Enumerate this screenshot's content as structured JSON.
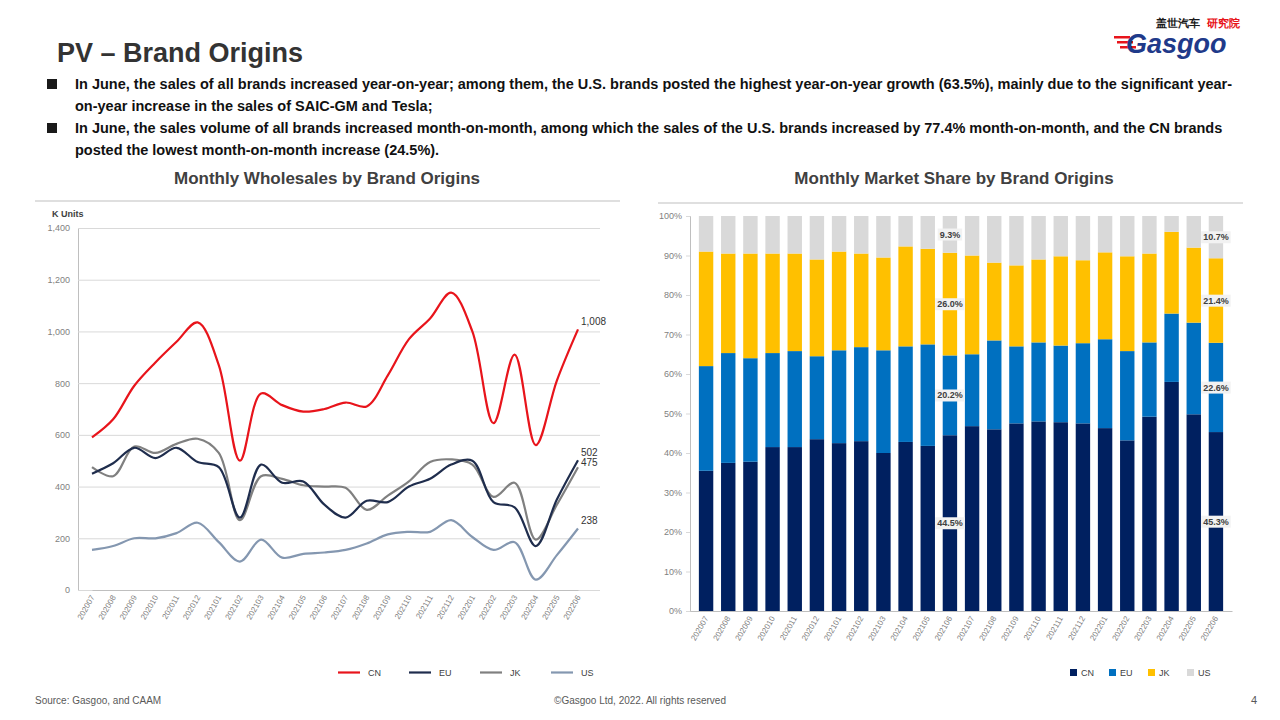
{
  "page": {
    "title": "PV – Brand Origins",
    "logo_cn": "盖世汽车",
    "logo_sub": "研究院",
    "logo_en": "Gasgoo",
    "bullets": [
      "In June, the sales of all brands increased year-on-year; among them, the U.S. brands posted the highest year-on-year growth (63.5%), mainly due to the significant year-on-year increase in the sales of SAIC-GM and Tesla;",
      "In June, the sales volume of all brands increased month-on-month, among which the sales of the U.S. brands increased by 77.4% month-on-month, and the CN brands posted the lowest month-on-month increase (24.5%)."
    ],
    "source": "Source: Gasgoo, and CAAM",
    "copyright": "©Gasgoo Ltd, 2022. All rights reserved",
    "page_number": "4"
  },
  "chart_data": [
    {
      "type": "line",
      "title": "Monthly Wholesales by Brand Origins",
      "ylabel": "K Units",
      "categories": [
        "202007",
        "202008",
        "202009",
        "202010",
        "202011",
        "202012",
        "202101",
        "202102",
        "202103",
        "202104",
        "202105",
        "202106",
        "202107",
        "202108",
        "202109",
        "202110",
        "202111",
        "202112",
        "202201",
        "202202",
        "202203",
        "202204",
        "202205",
        "202206"
      ],
      "ylim": [
        0,
        1400
      ],
      "yticks": [
        0,
        200,
        400,
        600,
        800,
        {
          "value": 1000,
          "label": "1,000"
        },
        {
          "value": 1200,
          "label": "1,200"
        },
        {
          "value": 1400,
          "label": "1,400"
        }
      ],
      "grid": true,
      "legend": "bottom",
      "data_labels": true,
      "series": [
        {
          "name": "CN",
          "color": "#e8141b",
          "values": [
            590,
            660,
            790,
            880,
            960,
            1035,
            870,
            500,
            760,
            715,
            690,
            700,
            725,
            710,
            830,
            970,
            1050,
            1150,
            1000,
            645,
            910,
            560,
            810,
            1008
          ],
          "value_labels": [
            null,
            null,
            null,
            null,
            null,
            null,
            null,
            null,
            null,
            null,
            null,
            null,
            null,
            null,
            null,
            null,
            null,
            null,
            null,
            null,
            null,
            null,
            null,
            "1,008"
          ]
        },
        {
          "name": "EU",
          "color": "#1f2d4d",
          "values": [
            450,
            490,
            550,
            510,
            550,
            495,
            475,
            280,
            485,
            415,
            420,
            330,
            280,
            345,
            340,
            400,
            430,
            485,
            500,
            340,
            320,
            170,
            350,
            502
          ],
          "value_labels": [
            null,
            null,
            null,
            null,
            null,
            null,
            null,
            null,
            null,
            null,
            null,
            null,
            null,
            null,
            null,
            null,
            null,
            null,
            null,
            null,
            null,
            null,
            null,
            "502"
          ]
        },
        {
          "name": "JK",
          "color": "#808080",
          "values": [
            475,
            440,
            555,
            530,
            565,
            585,
            530,
            270,
            440,
            430,
            405,
            400,
            395,
            310,
            365,
            420,
            495,
            505,
            485,
            360,
            415,
            195,
            330,
            475
          ],
          "value_labels": [
            null,
            null,
            null,
            null,
            null,
            null,
            null,
            null,
            null,
            null,
            null,
            null,
            null,
            null,
            null,
            null,
            null,
            null,
            null,
            null,
            null,
            null,
            null,
            "475"
          ]
        },
        {
          "name": "US",
          "color": "#8497b0",
          "values": [
            155,
            170,
            200,
            200,
            220,
            260,
            185,
            110,
            195,
            125,
            140,
            145,
            155,
            180,
            215,
            225,
            225,
            270,
            205,
            155,
            185,
            40,
            135,
            238
          ],
          "value_labels": [
            null,
            null,
            null,
            null,
            null,
            null,
            null,
            null,
            null,
            null,
            null,
            null,
            null,
            null,
            null,
            null,
            null,
            null,
            null,
            null,
            null,
            null,
            null,
            "238"
          ]
        }
      ]
    },
    {
      "type": "bar",
      "stacked": true,
      "title": "Monthly Market Share by Brand Origins",
      "categories": [
        "202007",
        "202008",
        "202009",
        "202010",
        "202011",
        "202012",
        "202101",
        "202102",
        "202103",
        "202104",
        "202105",
        "202106",
        "202107",
        "202108",
        "202109",
        "202110",
        "202111",
        "202112",
        "202201",
        "202202",
        "202203",
        "202204",
        "202205",
        "202206"
      ],
      "ylim": [
        0,
        100
      ],
      "yticks": [
        {
          "value": 0,
          "label": "0%"
        },
        {
          "value": 10,
          "label": "10%"
        },
        {
          "value": 20,
          "label": "20%"
        },
        {
          "value": 30,
          "label": "30%"
        },
        {
          "value": 40,
          "label": "40%"
        },
        {
          "value": 50,
          "label": "50%"
        },
        {
          "value": 60,
          "label": "60%"
        },
        {
          "value": 70,
          "label": "70%"
        },
        {
          "value": 80,
          "label": "80%"
        },
        {
          "value": 90,
          "label": "90%"
        },
        {
          "value": 100,
          "label": "100%"
        }
      ],
      "grid": false,
      "legend": "bottom",
      "data_labels": true,
      "series": [
        {
          "name": "CN",
          "color": "#002060",
          "values": [
            35.5,
            37.5,
            37.8,
            41.5,
            41.5,
            43.5,
            42.5,
            43,
            40,
            42.8,
            41.8,
            44.5,
            46.8,
            46,
            47.5,
            48,
            47.8,
            47.5,
            46.3,
            43.2,
            49.2,
            58,
            49.8,
            45.3
          ],
          "value_labels": [
            null,
            null,
            null,
            null,
            null,
            null,
            null,
            null,
            null,
            null,
            null,
            "44.5%",
            null,
            null,
            null,
            null,
            null,
            null,
            null,
            null,
            null,
            null,
            null,
            "45.3%"
          ]
        },
        {
          "name": "EU",
          "color": "#0070c0",
          "values": [
            26.5,
            27.8,
            26.2,
            23.8,
            24.3,
            21,
            23.5,
            23.8,
            26,
            24.2,
            25.7,
            20.2,
            18.2,
            22.5,
            19.5,
            20,
            19.4,
            20.3,
            22.5,
            22.6,
            18.8,
            17.3,
            23.2,
            22.6
          ],
          "value_labels": [
            null,
            null,
            null,
            null,
            null,
            null,
            null,
            null,
            null,
            null,
            null,
            "20.2%",
            null,
            null,
            null,
            null,
            null,
            null,
            null,
            null,
            null,
            null,
            null,
            "22.6%"
          ]
        },
        {
          "name": "JK",
          "color": "#ffc000",
          "values": [
            29,
            25.2,
            26.5,
            25.2,
            24.7,
            24.5,
            25,
            23.7,
            23.5,
            25.3,
            24.2,
            26,
            25,
            19.7,
            20.5,
            21,
            22.6,
            21,
            22,
            24,
            22.5,
            20.7,
            19,
            21.4
          ],
          "value_labels": [
            null,
            null,
            null,
            null,
            null,
            null,
            null,
            null,
            null,
            null,
            null,
            "26.0%",
            null,
            null,
            null,
            null,
            null,
            null,
            null,
            null,
            null,
            null,
            null,
            "21.4%"
          ]
        },
        {
          "name": "US",
          "color": "#d9d9d9",
          "values": [
            9,
            9.5,
            9.5,
            9.5,
            9.5,
            11,
            9,
            9.5,
            10.5,
            7.7,
            8.3,
            9.3,
            10,
            11.8,
            12.5,
            11,
            10.2,
            11.2,
            9.2,
            10.2,
            9.5,
            4,
            8,
            10.7
          ],
          "value_labels": [
            null,
            null,
            null,
            null,
            null,
            null,
            null,
            null,
            null,
            null,
            null,
            "9.3%",
            null,
            null,
            null,
            null,
            null,
            null,
            null,
            null,
            null,
            null,
            null,
            "10.7%"
          ]
        }
      ]
    }
  ]
}
